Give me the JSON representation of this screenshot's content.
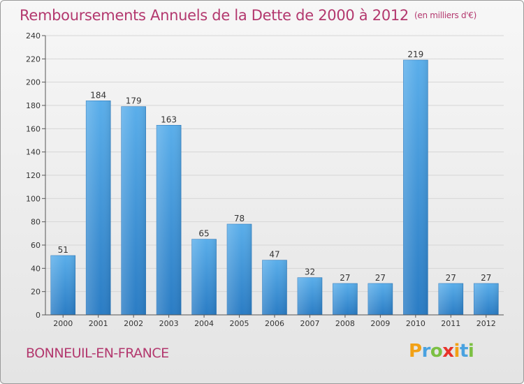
{
  "header": {
    "title": "Remboursements Annuels de la Dette de 2000 à 2012",
    "subtitle": "(en milliers d'€)"
  },
  "footer": {
    "commune": "BONNEUIL-EN-FRANCE",
    "logo_letters": [
      "P",
      "r",
      "o",
      "x",
      "i",
      "t",
      "i"
    ],
    "logo_colors": [
      "#f2a116",
      "#4aa2e0",
      "#7cc043",
      "#e8332a",
      "#f2a116",
      "#4aa2e0",
      "#7cc043"
    ]
  },
  "chart_data": {
    "type": "bar",
    "title": "Remboursements Annuels de la Dette de 2000 à 2012",
    "subtitle": "(en milliers d'€)",
    "categories": [
      "2000",
      "2001",
      "2002",
      "2003",
      "2004",
      "2005",
      "2006",
      "2007",
      "2008",
      "2009",
      "2010",
      "2011",
      "2012"
    ],
    "values": [
      51,
      184,
      179,
      163,
      65,
      78,
      47,
      32,
      27,
      27,
      219,
      27,
      27
    ],
    "ylim": [
      0,
      240
    ],
    "yticks": [
      0,
      20,
      40,
      60,
      80,
      100,
      120,
      140,
      160,
      180,
      200,
      220,
      240
    ],
    "xlabel": "",
    "ylabel": "",
    "grid": true,
    "bar_color": "#3a8fd6"
  }
}
